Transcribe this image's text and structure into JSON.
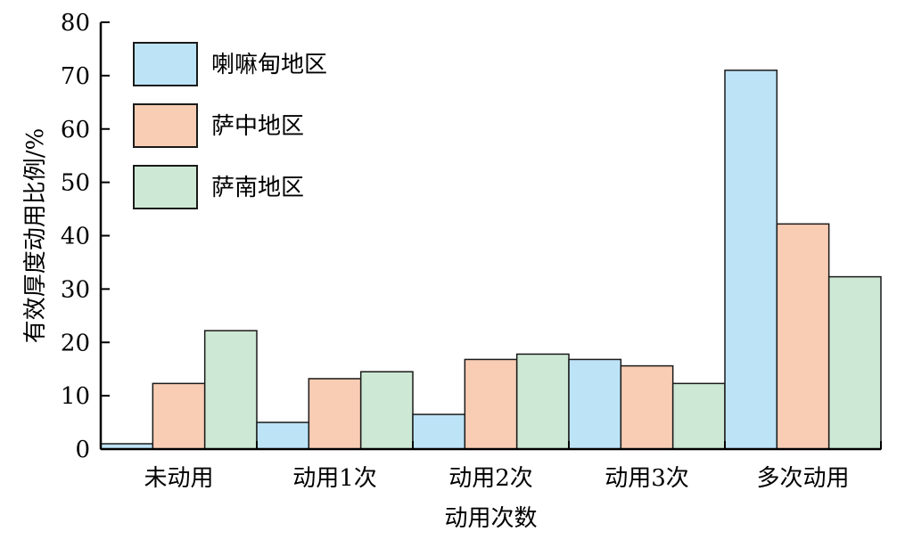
{
  "chart_data": {
    "type": "bar",
    "title": "",
    "xlabel": "动用次数",
    "ylabel": "有效厚度动用比例/%",
    "ylim": [
      0,
      80
    ],
    "yticks": [
      0,
      10,
      20,
      30,
      40,
      50,
      60,
      70,
      80
    ],
    "categories": [
      "未动用",
      "动用1次",
      "动用2次",
      "动用3次",
      "多次动用"
    ],
    "series": [
      {
        "name": "喇嘛甸地区",
        "color": "#bde3f7",
        "values": [
          1,
          5,
          6.5,
          16.8,
          71
        ]
      },
      {
        "name": "萨中地区",
        "color": "#f9cdb4",
        "values": [
          12.3,
          13.2,
          16.8,
          15.6,
          42.2
        ]
      },
      {
        "name": "萨南地区",
        "color": "#cde8d4",
        "values": [
          22.2,
          14.5,
          17.8,
          12.3,
          32.3
        ]
      }
    ],
    "legend": {
      "position": "top-left"
    },
    "grid": false
  }
}
